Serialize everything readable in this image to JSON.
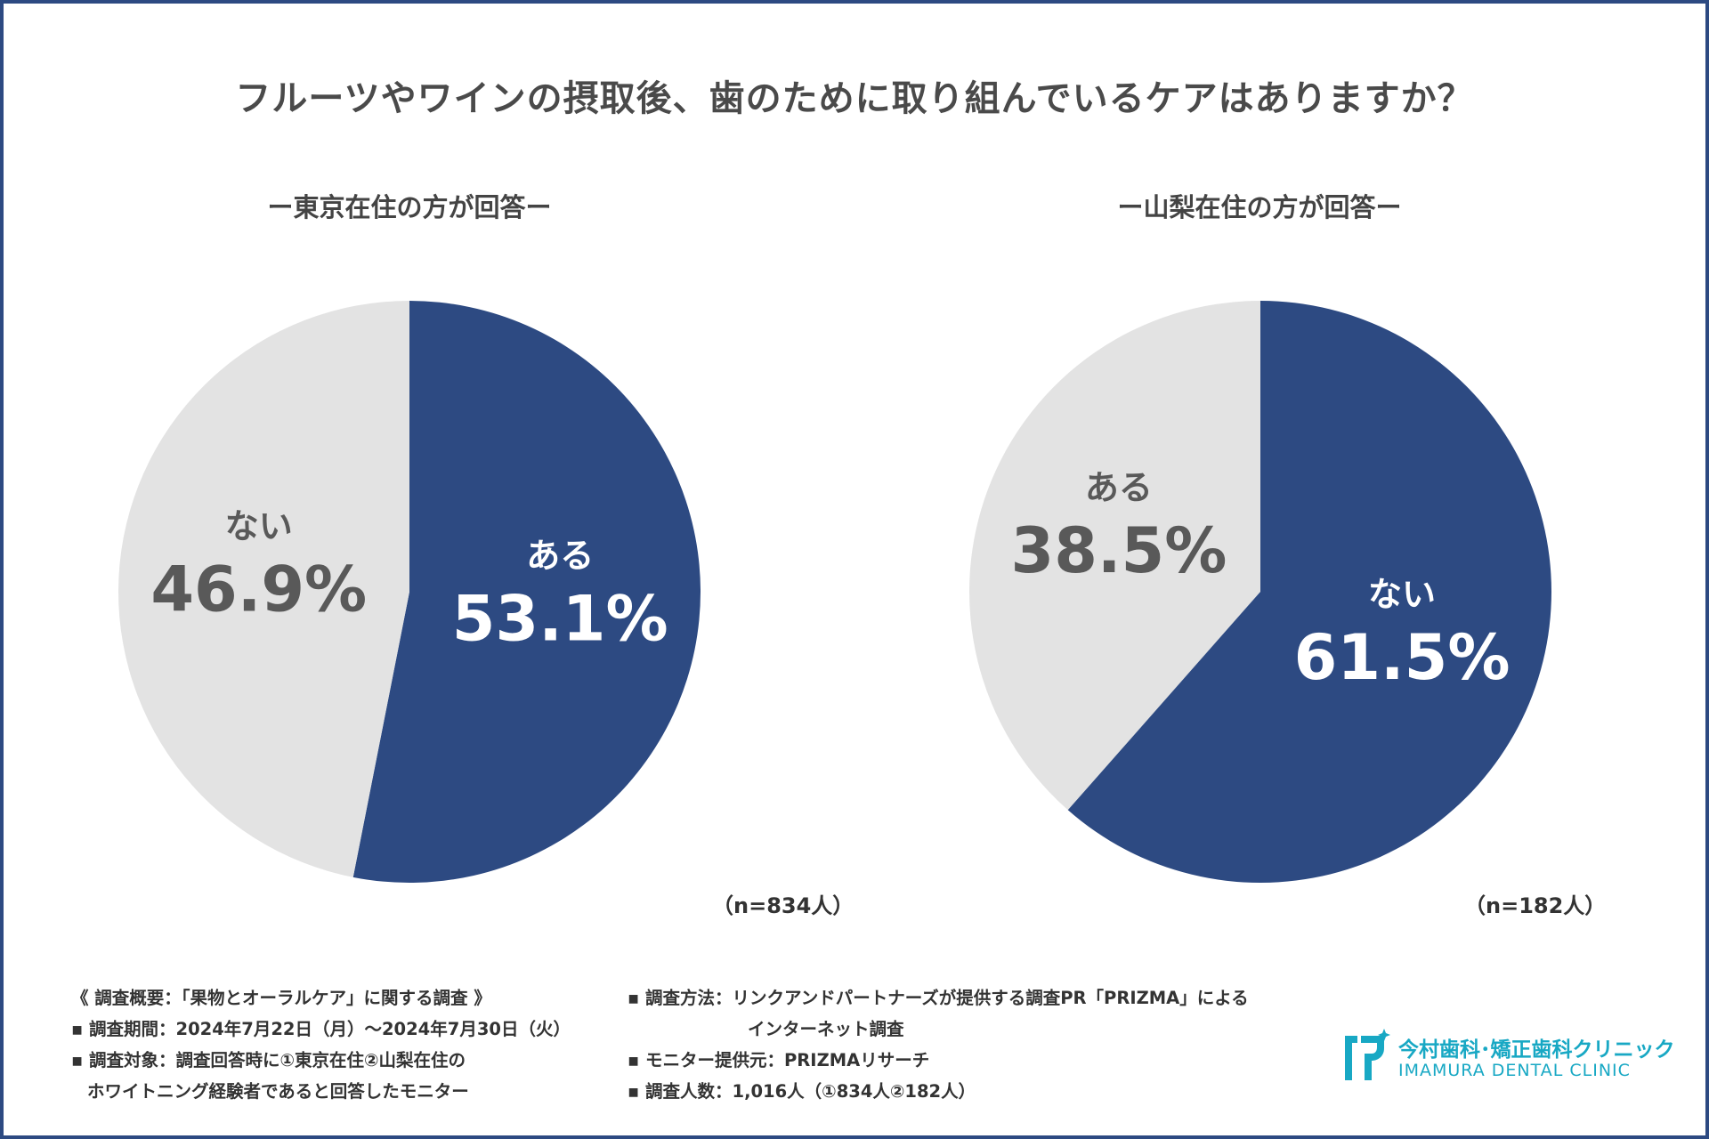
{
  "title": "フルーツやワインの摂取後、歯のために取り組んでいるケアはありますか？",
  "chart_data": [
    {
      "type": "pie",
      "title": "ー東京在住の方が回答ー",
      "n_label": "（n=834人）",
      "slices": [
        {
          "label": "ある",
          "value": 53.1,
          "display": "53.1%",
          "color": "#2d4a82",
          "text_color": "#ffffff"
        },
        {
          "label": "ない",
          "value": 46.9,
          "display": "46.9%",
          "color": "#e3e3e3",
          "text_color": "#595959"
        }
      ]
    },
    {
      "type": "pie",
      "title": "ー山梨在住の方が回答ー",
      "n_label": "（n=182人）",
      "slices": [
        {
          "label": "ある",
          "value": 38.5,
          "display": "38.5%",
          "color": "#e3e3e3",
          "text_color": "#595959"
        },
        {
          "label": "ない",
          "value": 61.5,
          "display": "61.5%",
          "color": "#2d4a82",
          "text_color": "#ffffff"
        }
      ]
    }
  ],
  "notes_left": [
    "《 調査概要：「果物とオーラルケア」に関する調査 》",
    "▪ 調査期間：2024年7月22日（月）～2024年7月30日（火）",
    "▪ 調査対象：調査回答時に①東京在住②山梨在住の",
    "ホワイトニング経験者であると回答したモニター"
  ],
  "notes_right": [
    "▪ 調査方法：リンクアンドパートナーズが提供する調査PR「PRIZMA」による",
    "インターネット調査",
    "▪ モニター提供元：PRIZMAリサーチ",
    "▪ 調査人数：1,016人（①834人②182人）"
  ],
  "logo": {
    "name_jp": "今村歯科･矯正歯科クリニック",
    "name_en": "IMAMURA DENTAL CLINIC",
    "color": "#18a8c4"
  }
}
